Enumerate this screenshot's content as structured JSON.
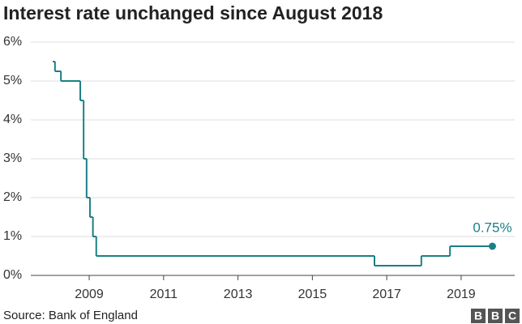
{
  "chart_data": {
    "type": "step",
    "title": "Interest rate unchanged since August 2018",
    "x": [
      2008.02,
      2008.08,
      2008.24,
      2008.76,
      2008.85,
      2008.93,
      2009.02,
      2009.1,
      2009.19,
      2016.67,
      2017.93,
      2018.7,
      2019.84
    ],
    "values": [
      5.5,
      5.25,
      5,
      4.5,
      3,
      2,
      1.5,
      1,
      0.5,
      0.25,
      0.5,
      0.75,
      0.75
    ],
    "color": "#1b7f86",
    "annotation": "0.75%",
    "xlim": [
      2007.43,
      2020.44
    ],
    "xticks": [
      2009,
      2011,
      2013,
      2015,
      2017,
      2019
    ],
    "ylim": [
      0,
      6
    ],
    "yticks": [
      {
        "value": 0,
        "label": "0%"
      },
      {
        "value": 1,
        "label": "1%"
      },
      {
        "value": 2,
        "label": "2%"
      },
      {
        "value": 3,
        "label": "3%"
      },
      {
        "value": 4,
        "label": "4%"
      },
      {
        "value": 5,
        "label": "5%"
      },
      {
        "value": 6,
        "label": "6%"
      }
    ],
    "grid": true,
    "source": "Source: Bank of England",
    "logo": [
      "B",
      "B",
      "C"
    ]
  }
}
